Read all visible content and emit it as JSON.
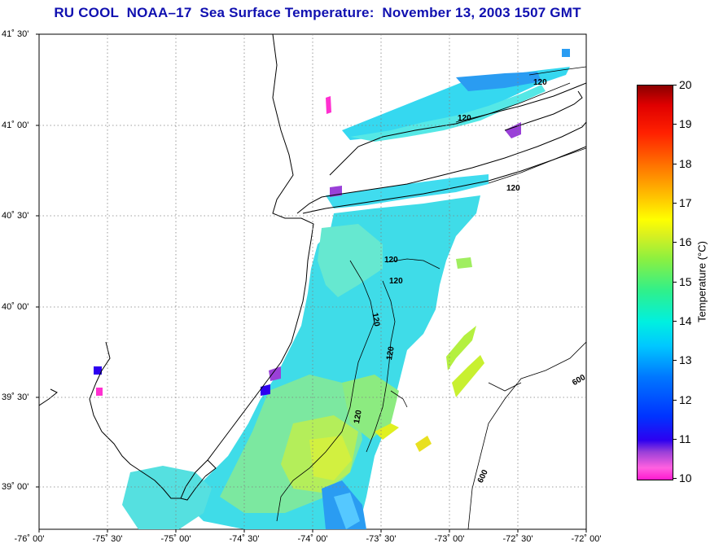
{
  "title": "RU COOL  NOAA–17  Sea Surface Temperature:  November 13, 2003 1507 GMT",
  "lat_labels": [
    "41˚ 30'",
    "41˚ 00'",
    "40˚ 30'",
    "40˚ 00'",
    "39˚ 30'",
    "39˚ 00'"
  ],
  "lon_labels": [
    "-76˚ 00'",
    "-75˚ 30'",
    "-75˚ 00'",
    "-74˚ 30'",
    "-74˚ 00'",
    "-73˚ 30'",
    "-73˚ 00'",
    "-72˚ 30'",
    "-72˚ 00'"
  ],
  "map_extent": {
    "lon_min": -76.0,
    "lon_max": -72.0,
    "lat_min": 38.75,
    "lat_max": 41.5
  },
  "colorbar": {
    "label": "Temperature (°C)",
    "ticks": [
      "20",
      "19",
      "18",
      "17",
      "16",
      "15",
      "14",
      "13",
      "12",
      "11",
      "10"
    ],
    "min": 10,
    "max": 20
  },
  "contour_labels": [
    "120",
    "120",
    "120",
    "120",
    "120",
    "120",
    "120",
    "120",
    "600",
    "600"
  ],
  "colors": {
    "title": "#1010b0",
    "grid": "#808080",
    "coast": "#000000"
  }
}
